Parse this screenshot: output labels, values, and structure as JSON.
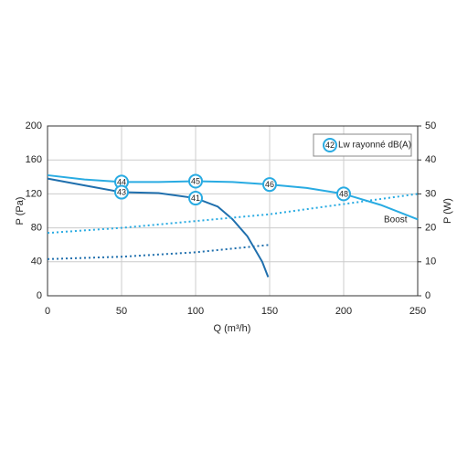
{
  "chart_data": {
    "type": "line",
    "x_label": "Q (m³/h)",
    "y_label": "P (Pa)",
    "y2_label": "P (W)",
    "xlim": [
      0,
      250
    ],
    "xticks": [
      0,
      50,
      100,
      150,
      200,
      250
    ],
    "ylim": [
      0,
      200
    ],
    "yticks": [
      0,
      40,
      80,
      120,
      160,
      200
    ],
    "y2lim": [
      0,
      50
    ],
    "y2ticks": [
      0,
      10,
      20,
      30,
      40,
      50
    ],
    "grid": true,
    "legend": {
      "marker": 42,
      "label": "Lw rayonné dB(A)",
      "color": "#29abe2"
    },
    "annotations": [
      "Boost"
    ],
    "series": [
      {
        "color": "#29abe2",
        "style": "solid",
        "x": [
          0,
          25,
          50,
          75,
          100,
          125,
          150,
          175,
          200,
          225,
          250
        ],
        "values": [
          142,
          137,
          134,
          134,
          135,
          134,
          131,
          127,
          120,
          107,
          90
        ],
        "markers": {
          "x": [
            50,
            100,
            150,
            200
          ],
          "labels": [
            44,
            45,
            46,
            48
          ]
        }
      },
      {
        "color": "#1f6fad",
        "style": "solid",
        "x": [
          0,
          25,
          50,
          75,
          100,
          115,
          125,
          135,
          145,
          149
        ],
        "values": [
          138,
          130,
          122,
          121,
          115,
          105,
          90,
          70,
          40,
          22
        ],
        "markers": {
          "x": [
            50,
            100
          ],
          "labels": [
            43,
            41
          ]
        }
      },
      {
        "color": "#29abe2",
        "style": "dotted",
        "axis": "y2",
        "x": [
          0,
          50,
          100,
          150,
          200,
          250
        ],
        "values": [
          18.5,
          20,
          22,
          24,
          27,
          30
        ]
      },
      {
        "color": "#1f6fad",
        "style": "dotted",
        "axis": "y2",
        "x": [
          0,
          50,
          100,
          150
        ],
        "values": [
          10.8,
          11.5,
          12.8,
          15
        ]
      }
    ]
  }
}
